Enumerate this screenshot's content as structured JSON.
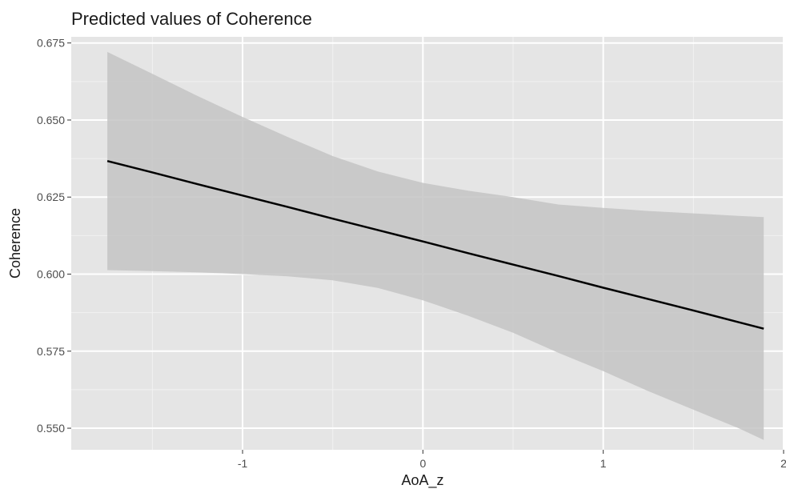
{
  "chart_data": {
    "type": "line",
    "title": "Predicted values of Coherence",
    "xlabel": "AoA_z",
    "ylabel": "Coherence",
    "xlim": [
      -1.95,
      2.0
    ],
    "ylim": [
      0.543,
      0.677
    ],
    "x_ticks": [
      -1,
      0,
      1,
      2
    ],
    "x_tick_labels": [
      "-1",
      "0",
      "1",
      "2"
    ],
    "y_ticks": [
      0.55,
      0.575,
      0.6,
      0.625,
      0.65,
      0.675
    ],
    "y_tick_labels": [
      "0.550",
      "0.575",
      "0.600",
      "0.625",
      "0.650",
      "0.675"
    ],
    "grid": true,
    "legend": "none",
    "series": [
      {
        "x": [
          -1.75,
          -1.5,
          -1.25,
          -1.0,
          -0.75,
          -0.5,
          -0.25,
          0.0,
          0.25,
          0.5,
          0.75,
          1.0,
          1.25,
          1.5,
          1.75,
          1.89
        ],
        "y": [
          0.6367,
          0.633,
          0.6292,
          0.6255,
          0.6218,
          0.618,
          0.6143,
          0.6106,
          0.6068,
          0.6031,
          0.5994,
          0.5956,
          0.5919,
          0.5882,
          0.5844,
          0.5823
        ],
        "lower": [
          0.6013,
          0.601,
          0.6006,
          0.6,
          0.5993,
          0.598,
          0.5955,
          0.5915,
          0.5865,
          0.581,
          0.5745,
          0.5685,
          0.562,
          0.556,
          0.55,
          0.5462
        ],
        "upper": [
          0.6721,
          0.665,
          0.6578,
          0.651,
          0.6445,
          0.6383,
          0.6333,
          0.6296,
          0.6271,
          0.625,
          0.6226,
          0.6215,
          0.6205,
          0.6197,
          0.6189,
          0.6185
        ]
      }
    ],
    "colors": {
      "panel": "#e5e5e5",
      "grid_major": "#ffffff",
      "grid_minor": "#f2f2f2",
      "line": "#000000",
      "ribbon": "#c4c4c4"
    }
  }
}
